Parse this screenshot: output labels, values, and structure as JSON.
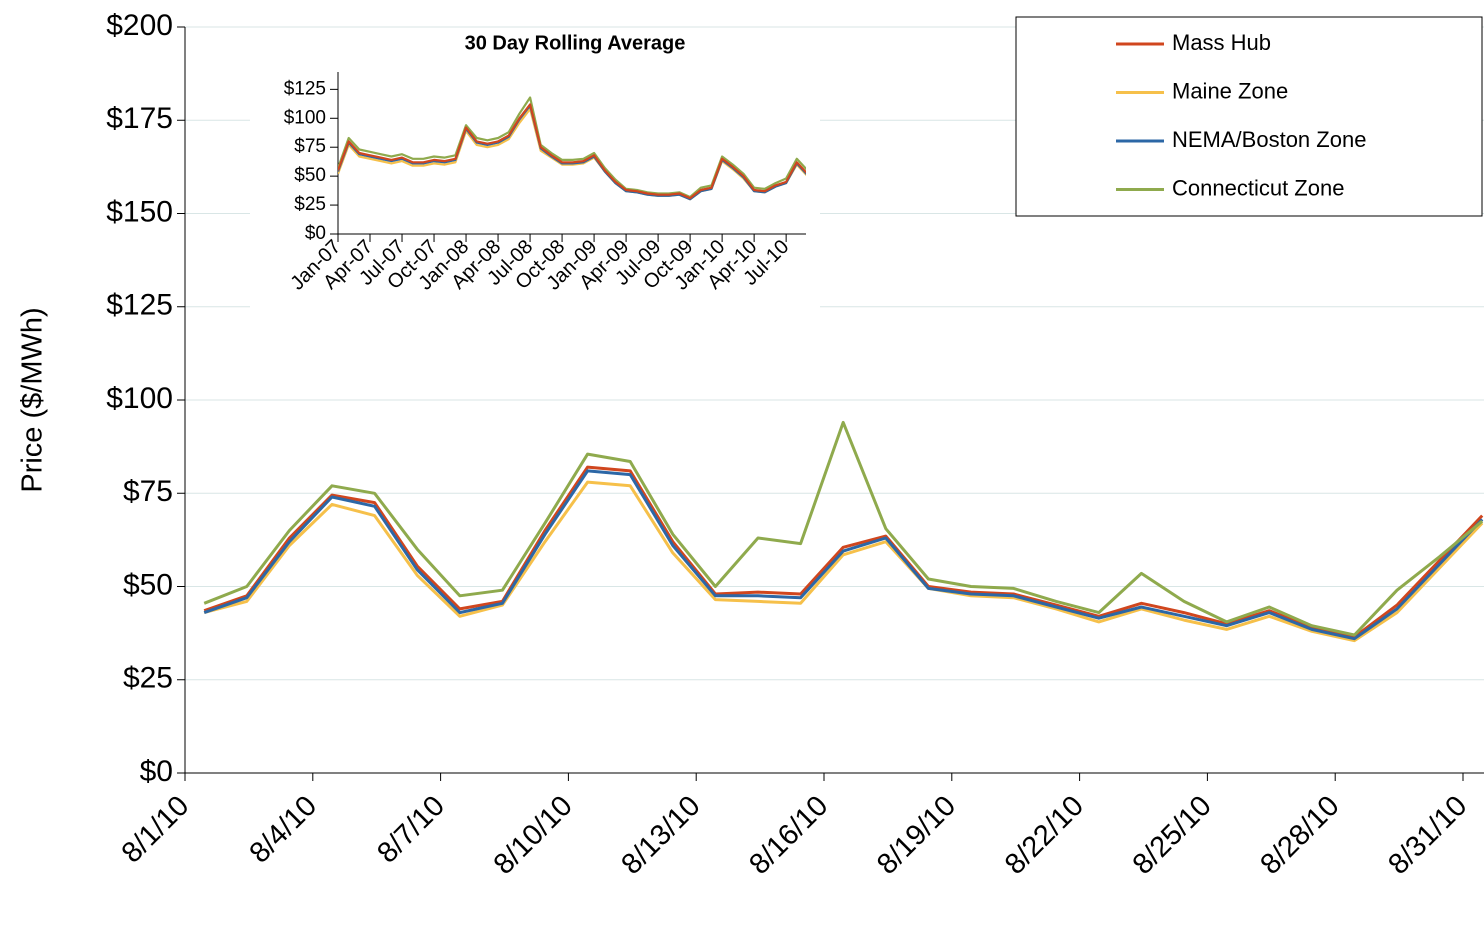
{
  "chart_data": [
    {
      "type": "line",
      "y_label": "Price ($/MWh)",
      "categories": [
        "8/1/10",
        null,
        null,
        "8/4/10",
        null,
        null,
        "8/7/10",
        null,
        null,
        "8/10/10",
        null,
        null,
        "8/13/10",
        null,
        null,
        "8/16/10",
        null,
        null,
        "8/19/10",
        null,
        null,
        "8/22/10",
        null,
        null,
        "8/25/10",
        null,
        null,
        "8/28/10",
        null,
        null,
        "8/31/10"
      ],
      "ylim": [
        0,
        200
      ],
      "yticks": [
        {
          "value": 0,
          "label": "$0"
        },
        {
          "value": 25,
          "label": "$25"
        },
        {
          "value": 50,
          "label": "$50"
        },
        {
          "value": 75,
          "label": "$75"
        },
        {
          "value": 100,
          "label": "$100"
        },
        {
          "value": 125,
          "label": "$125"
        },
        {
          "value": 150,
          "label": "$150"
        },
        {
          "value": 175,
          "label": "$175"
        },
        {
          "value": 200,
          "label": "$200"
        }
      ],
      "grid": true,
      "legend": "top-right",
      "series": [
        {
          "name": "Mass Hub",
          "color": "#d0461e",
          "values": [
            43.5,
            47.5,
            63,
            74.5,
            72.5,
            55.5,
            44,
            46,
            65,
            82,
            81,
            62,
            48,
            48.5,
            48,
            60.5,
            63.5,
            50,
            48.5,
            48,
            45,
            42,
            45.5,
            43,
            40,
            43.5,
            39,
            36.5,
            45,
            57,
            69
          ]
        },
        {
          "name": "Maine Zone",
          "color": "#f6c04a",
          "values": [
            43,
            46,
            61,
            72,
            69,
            53,
            42,
            45,
            62,
            78,
            77,
            59,
            46.5,
            46,
            45.5,
            58.5,
            62,
            49.5,
            47.5,
            47,
            44,
            40.5,
            44,
            41,
            38.5,
            42,
            38,
            35.5,
            43,
            55,
            67
          ]
        },
        {
          "name": "NEMA/Boston Zone",
          "color": "#2c67a6",
          "values": [
            43,
            47,
            62,
            74,
            71.5,
            54.5,
            43,
            45.5,
            64,
            81,
            80,
            61,
            47.5,
            47.5,
            47,
            59.5,
            63,
            49.5,
            48,
            47.5,
            44.5,
            41.5,
            44.5,
            42,
            39.5,
            43,
            38.5,
            36,
            44,
            56,
            68
          ]
        },
        {
          "name": "Connecticut Zone",
          "color": "#8faa4d",
          "values": [
            45.5,
            50,
            65,
            77,
            75,
            60,
            47.5,
            49,
            67,
            85.5,
            83.5,
            64,
            50,
            63,
            61.5,
            94,
            65.5,
            52,
            50,
            49.5,
            46,
            43,
            53.5,
            46,
            40.5,
            44.5,
            39.5,
            37,
            49,
            58,
            67.5
          ]
        }
      ]
    },
    {
      "type": "line",
      "title": "30 Day Rolling Average",
      "categories": [
        "Jan-07",
        null,
        null,
        "Apr-07",
        null,
        null,
        "Jul-07",
        null,
        null,
        "Oct-07",
        null,
        null,
        "Jan-08",
        null,
        null,
        "Apr-08",
        null,
        null,
        "Jul-08",
        null,
        null,
        "Oct-08",
        null,
        null,
        "Jan-09",
        null,
        null,
        "Apr-09",
        null,
        null,
        "Jul-09",
        null,
        null,
        "Oct-09",
        null,
        null,
        "Jan-10",
        null,
        null,
        "Apr-10",
        null,
        null,
        "Jul-10",
        null,
        null
      ],
      "ylim": [
        0,
        140
      ],
      "yticks": [
        {
          "value": 0,
          "label": "$0"
        },
        {
          "value": 25,
          "label": "$25"
        },
        {
          "value": 50,
          "label": "$50"
        },
        {
          "value": 75,
          "label": "$75"
        },
        {
          "value": 100,
          "label": "$100"
        },
        {
          "value": 125,
          "label": "$125"
        }
      ],
      "grid": false,
      "series": [
        {
          "color": "#f6c04a",
          "values": [
            52,
            77,
            67,
            65,
            63,
            61,
            63,
            59,
            59,
            61,
            60,
            62,
            89,
            77,
            75,
            77,
            82,
            96,
            108,
            72,
            66,
            60,
            60,
            61,
            66,
            54,
            44,
            37,
            36,
            34,
            33,
            33,
            34,
            30,
            37,
            39,
            63,
            56,
            48,
            37,
            36,
            41,
            44,
            60,
            50
          ]
        },
        {
          "color": "#8faa4d",
          "values": [
            57,
            83,
            73,
            71,
            69,
            67,
            69,
            65,
            65,
            67,
            66,
            68,
            94,
            83,
            81,
            83,
            88,
            104,
            118,
            77,
            70,
            64,
            64,
            65,
            70,
            57,
            47,
            39,
            38,
            36,
            35,
            35,
            36,
            32,
            40,
            42,
            67,
            60,
            52,
            40,
            39,
            44,
            48,
            65,
            55
          ]
        },
        {
          "color": "#2c67a6",
          "values": [
            54,
            79,
            69,
            67,
            65,
            63,
            65,
            61,
            61,
            63,
            62,
            64,
            91,
            79,
            77,
            79,
            84,
            99,
            111,
            74,
            67,
            61,
            61,
            62,
            67,
            54,
            44,
            37,
            36,
            34,
            33,
            33,
            34,
            30,
            37,
            39,
            64,
            57,
            49,
            37,
            36,
            41,
            44,
            61,
            51
          ]
        },
        {
          "color": "#d0461e",
          "values": [
            55,
            80,
            70,
            68,
            66,
            64,
            66,
            62,
            62,
            64,
            63,
            65,
            92,
            80,
            78,
            80,
            85,
            100,
            112,
            75,
            68,
            62,
            62,
            63,
            68,
            55,
            45,
            38,
            37,
            35,
            34,
            34,
            35,
            31,
            38,
            40,
            65,
            58,
            50,
            38,
            37,
            42,
            45,
            62,
            52
          ]
        }
      ]
    }
  ]
}
